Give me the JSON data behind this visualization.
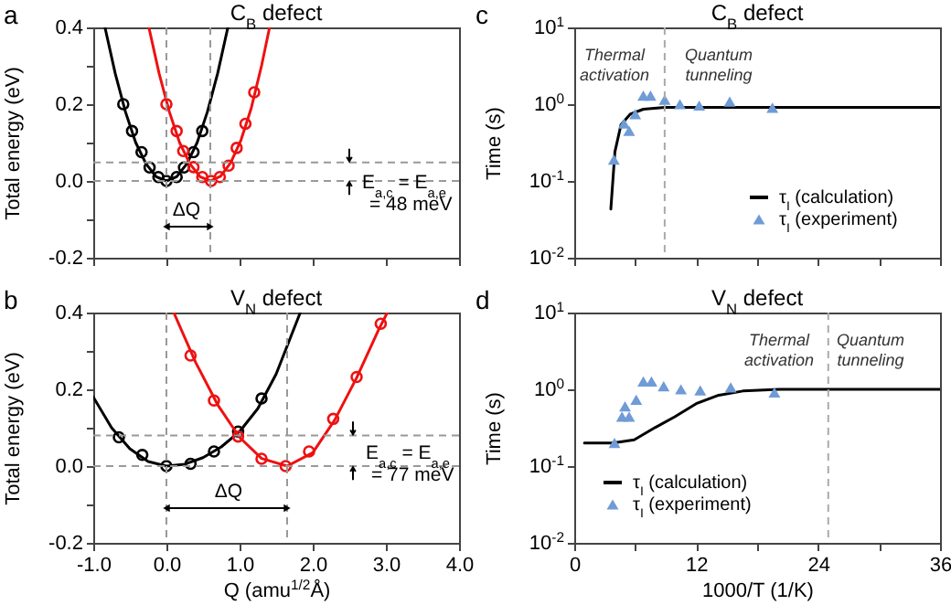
{
  "chart_data": [
    {
      "type": "line",
      "title": "C$_{B}$ defect",
      "ylabel": "Total energy (eV)",
      "xlim": [
        -1,
        4
      ],
      "ylim": [
        -0.2,
        0.4
      ],
      "xticks": [
        -1,
        0,
        1,
        2,
        3,
        4
      ],
      "yticks": [
        {
          "value": -0.2,
          "label": "-0.2"
        },
        {
          "value": -0.1,
          "label": null
        },
        {
          "value": 0,
          "label": "0.0"
        },
        {
          "value": 0.1,
          "label": null
        },
        {
          "value": 0.2,
          "label": "0.2"
        },
        {
          "value": 0.3,
          "label": null
        },
        {
          "value": 0.4,
          "label": "0.4"
        }
      ],
      "tick_labels": "y",
      "series": [
        {
          "color": "#000000",
          "x": [
            -0.84,
            -0.7,
            -0.56,
            -0.42,
            -0.28,
            -0.14,
            0,
            0.14,
            0.28,
            0.42,
            0.56,
            0.7,
            0.84
          ],
          "values": [
            0.4,
            0.28,
            0.18,
            0.1,
            0.045,
            0.011,
            0,
            0.011,
            0.045,
            0.1,
            0.18,
            0.28,
            0.4
          ]
        },
        {
          "type": "scatter",
          "marker": "circle",
          "color": "#000000",
          "x": [
            -0.59,
            -0.47,
            -0.34,
            -0.23,
            -0.11,
            0,
            0.14,
            0.24,
            0.37,
            0.49
          ],
          "values": [
            0.2,
            0.13,
            0.075,
            0.035,
            0.01,
            0,
            0.01,
            0.035,
            0.075,
            0.13
          ]
        },
        {
          "color": "#ee1111",
          "x": [
            -0.24,
            -0.1,
            0.04,
            0.18,
            0.32,
            0.46,
            0.6,
            0.74,
            0.88,
            1.02,
            1.16,
            1.3,
            1.41
          ],
          "values": [
            0.4,
            0.28,
            0.18,
            0.1,
            0.045,
            0.011,
            0,
            0.012,
            0.048,
            0.107,
            0.19,
            0.3,
            0.4
          ]
        },
        {
          "type": "scatter",
          "marker": "circle",
          "color": "#ee1111",
          "x": [
            0,
            0.14,
            0.23,
            0.37,
            0.49,
            0.61,
            0.73,
            0.85,
            0.96,
            1.08,
            1.2
          ],
          "values": [
            0.2,
            0.13,
            0.078,
            0.036,
            0.01,
            0,
            0.01,
            0.04,
            0.086,
            0.149,
            0.231
          ]
        }
      ],
      "ref_lines": [
        {
          "axis": "x",
          "value": 0,
          "color": "#999999",
          "line_style": "dashed"
        },
        {
          "axis": "x",
          "value": 0.6,
          "color": "#999999",
          "line_style": "dashed"
        },
        {
          "axis": "y",
          "value": 0.048,
          "color": "#999999",
          "line_style": "dashed"
        },
        {
          "axis": "y",
          "value": 0,
          "color": "#999999",
          "line_style": "dashed"
        }
      ],
      "annotations": [
        "a",
        "ΔQ",
        "E$_{a,c}$ = E$_{a,e}$",
        "= 48 meV"
      ]
    },
    {
      "type": "line",
      "title": "C$_{B}$ defect",
      "ylabel": "Time (s)",
      "log": "y",
      "xlim": [
        0,
        36
      ],
      "ylim": [
        0.01,
        10
      ],
      "xticks": [
        0,
        {
          "value": 6,
          "label": null
        },
        12,
        {
          "value": 18,
          "label": null
        },
        24,
        {
          "value": 30,
          "label": null
        },
        36
      ],
      "yticks": [
        {
          "value": 0.01,
          "label": "10$^{-2}$"
        },
        {
          "value": 0.1,
          "label": "10$^{-1}$"
        },
        {
          "value": 1,
          "label": "10$^{0}$"
        },
        {
          "value": 10,
          "label": "10$^{1}$"
        }
      ],
      "tick_labels": "y",
      "legend": "bottom right",
      "series": [
        {
          "name": "τ$_{I}$ (calculation)",
          "color": "#000000",
          "x": [
            3.6,
            4,
            4.6,
            5.5,
            6.8,
            8.9,
            12,
            36
          ],
          "values": [
            0.043,
            0.24,
            0.54,
            0.74,
            0.86,
            0.91,
            0.91,
            0.91
          ]
        },
        {
          "name": "τ$_{I}$ (experiment)",
          "type": "scatter",
          "marker": "triangle",
          "color": "#6f9bd6",
          "x": [
            3.9,
            4.9,
            5.4,
            6,
            6.8,
            7.5,
            8.9,
            10.4,
            12.3,
            15.3,
            19.5
          ],
          "values": [
            0.19,
            0.56,
            0.45,
            0.74,
            1.29,
            1.29,
            1.14,
            1,
            0.96,
            1.08,
            0.9
          ]
        }
      ],
      "ref_lines": [
        {
          "axis": "x",
          "value": 8.9,
          "color": "#aaaaaa",
          "line_style": "dashed"
        }
      ],
      "annotations": [
        "c",
        "Thermal activation",
        "Quantum tunneling"
      ]
    },
    {
      "type": "line",
      "title": "V$_{N}$ defect",
      "xlabel": "Q (amu$^{1/2}$Å)",
      "ylabel": "Total energy (eV)",
      "xlim": [
        -1,
        4
      ],
      "ylim": [
        -0.2,
        0.4
      ],
      "xticks": [
        {
          "value": -1,
          "label": "-1.0"
        },
        {
          "value": 0,
          "label": "0.0"
        },
        {
          "value": 1,
          "label": "1.0"
        },
        {
          "value": 2,
          "label": "2.0"
        },
        {
          "value": 3,
          "label": "3.0"
        },
        {
          "value": 4,
          "label": "4.0"
        }
      ],
      "yticks": [
        {
          "value": -0.2,
          "label": "-0.2"
        },
        {
          "value": -0.1,
          "label": null
        },
        {
          "value": 0,
          "label": "0.0"
        },
        {
          "value": 0.1,
          "label": null
        },
        {
          "value": 0.2,
          "label": "0.2"
        },
        {
          "value": 0.3,
          "label": null
        },
        {
          "value": 0.4,
          "label": "0.4"
        }
      ],
      "series": [
        {
          "color": "#000000",
          "x": [
            -1,
            -0.75,
            -0.5,
            -0.25,
            0,
            0.25,
            0.5,
            0.75,
            1,
            1.25,
            1.5,
            1.83
          ],
          "values": [
            0.18,
            0.1,
            0.045,
            0.012,
            0,
            0.005,
            0.022,
            0.05,
            0.09,
            0.15,
            0.24,
            0.4
          ]
        },
        {
          "type": "scatter",
          "marker": "circle",
          "color": "#000000",
          "x": [
            -0.65,
            -0.33,
            0,
            0.33,
            0.65,
            0.98,
            1.3
          ],
          "values": [
            0.075,
            0.029,
            0,
            0.006,
            0.038,
            0.09,
            0.176
          ]
        },
        {
          "color": "#ee1111",
          "x": [
            0.1,
            0.4,
            0.7,
            1,
            1.3,
            1.65,
            2,
            2.3,
            2.6,
            2.9,
            3.02
          ],
          "values": [
            0.4,
            0.27,
            0.16,
            0.075,
            0.02,
            0,
            0.035,
            0.12,
            0.23,
            0.355,
            0.4
          ]
        },
        {
          "type": "scatter",
          "marker": "circle",
          "color": "#ee1111",
          "x": [
            0.33,
            0.65,
            0.98,
            1.3,
            1.63,
            1.95,
            2.28,
            2.6,
            2.93
          ],
          "values": [
            0.288,
            0.171,
            0.077,
            0.019,
            0,
            0.038,
            0.123,
            0.232,
            0.371
          ]
        }
      ],
      "ref_lines": [
        {
          "axis": "x",
          "value": 0,
          "color": "#999999",
          "line_style": "dashed"
        },
        {
          "axis": "x",
          "value": 1.65,
          "color": "#999999",
          "line_style": "dashed"
        },
        {
          "axis": "y",
          "value": 0.08,
          "color": "#999999",
          "line_style": "dashed"
        },
        {
          "axis": "y",
          "value": 0,
          "color": "#999999",
          "line_style": "dashed"
        }
      ],
      "annotations": [
        "b",
        "ΔQ",
        "E$_{a,c}$ = E$_{a,e}$",
        "= 77 meV"
      ]
    },
    {
      "type": "line",
      "title": "V$_{N}$ defect",
      "xlabel": "1000/T (1/K)",
      "ylabel": "Time (s)",
      "log": "y",
      "xlim": [
        0,
        36
      ],
      "ylim": [
        0.01,
        10
      ],
      "xticks": [
        0,
        {
          "value": 6,
          "label": null
        },
        12,
        {
          "value": 18,
          "label": null
        },
        24,
        {
          "value": 30,
          "label": null
        },
        36
      ],
      "yticks": [
        {
          "value": 0.01,
          "label": "10$^{-2}$"
        },
        {
          "value": 0.1,
          "label": "10$^{-1}$"
        },
        {
          "value": 1,
          "label": "10$^{0}$"
        },
        {
          "value": 10,
          "label": "10$^{1}$"
        }
      ],
      "legend": "bottom left",
      "series": [
        {
          "name": "τ$_{I}$ (calculation)",
          "color": "#000000",
          "x": [
            1,
            3.8,
            5.9,
            8,
            9.9,
            12,
            14.1,
            16.6,
            20.2,
            36
          ],
          "values": [
            0.2,
            0.2,
            0.22,
            0.32,
            0.44,
            0.65,
            0.83,
            0.95,
            1,
            1
          ]
        },
        {
          "name": "τ$_{I}$ (experiment)",
          "type": "scatter",
          "marker": "triangle",
          "color": "#6f9bd6",
          "x": [
            3.96,
            4.7,
            5,
            5.4,
            6.1,
            6.8,
            7.6,
            8.8,
            10.5,
            12.4,
            15.4,
            19.7
          ],
          "values": [
            0.2,
            0.44,
            0.6,
            0.44,
            0.73,
            1.27,
            1.27,
            1.1,
            1,
            0.97,
            1.06,
            0.91
          ]
        }
      ],
      "ref_lines": [
        {
          "axis": "x",
          "value": 25,
          "color": "#aaaaaa",
          "line_style": "dashed"
        }
      ],
      "annotations": [
        "d",
        "Thermal activation",
        "Quantum tunneling"
      ]
    }
  ]
}
